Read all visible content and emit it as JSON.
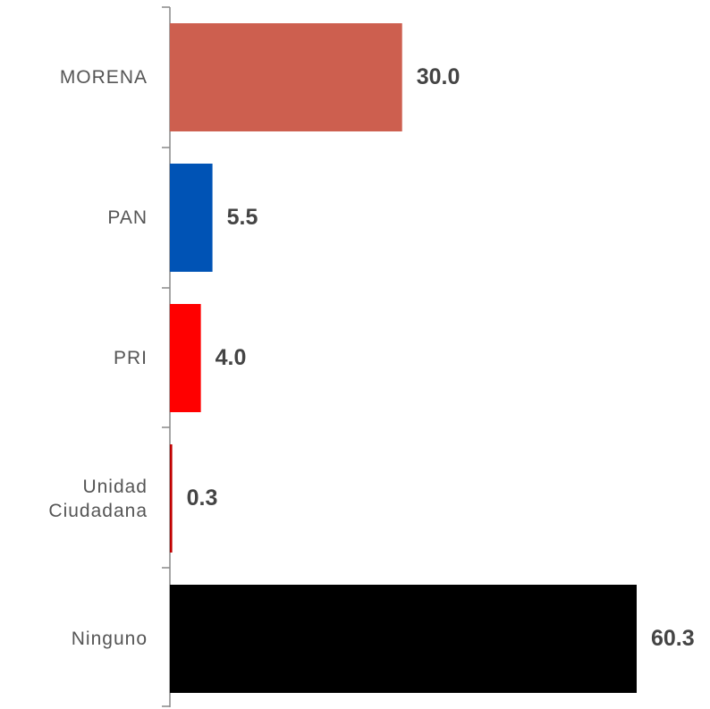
{
  "chart_data": {
    "type": "bar",
    "orientation": "horizontal",
    "categories": [
      "MORENA",
      "PAN",
      "PRI",
      "Unidad Ciudadana",
      "Ninguno"
    ],
    "values": [
      30.0,
      5.5,
      4.0,
      0.3,
      60.3
    ],
    "value_labels": [
      "30.0",
      "5.5",
      "4.0",
      "0.3",
      "60.3"
    ],
    "colors": [
      "#cd5f4f",
      "#0053b5",
      "#ff0000",
      "#c00000",
      "#000000"
    ]
  }
}
